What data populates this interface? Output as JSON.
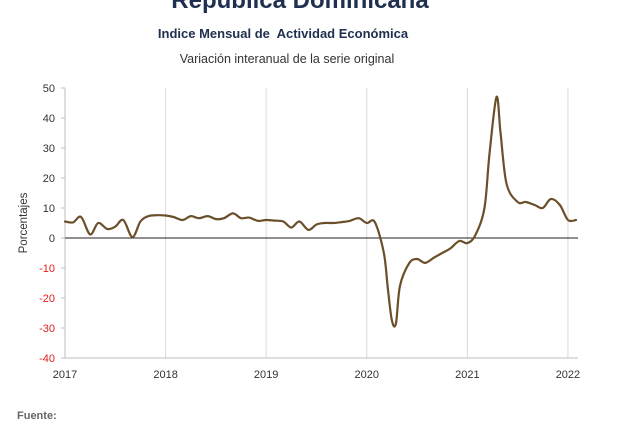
{
  "header": {
    "title": "República Dominicana",
    "subtitle": "Indice Mensual de  Actividad Económica",
    "subtitle2": "Variación interanual de la serie original"
  },
  "footer": {
    "source_label": "Fuente:"
  },
  "colors": {
    "line": "#6b4f2a",
    "grid": "#d9d9d9",
    "negative_tick": "#e02020",
    "positive_tick": "#333333"
  },
  "chart_data": {
    "type": "line",
    "ylabel": "Porcentajes",
    "ylim": [
      -40,
      50
    ],
    "yticks": [
      "50",
      "40",
      "30",
      "20",
      "10",
      "0",
      "-10",
      "-20",
      "-30",
      "-40"
    ],
    "xlim": [
      2017,
      2022.1
    ],
    "xticks": [
      "2017",
      "2018",
      "2019",
      "2020",
      "2021",
      "2022"
    ],
    "grid": "vertical",
    "series": [
      {
        "points": [
          [
            2017.0,
            5.5
          ],
          [
            2017.08,
            5.2
          ],
          [
            2017.16,
            7.0
          ],
          [
            2017.25,
            1.2
          ],
          [
            2017.33,
            5.0
          ],
          [
            2017.42,
            3.0
          ],
          [
            2017.5,
            3.8
          ],
          [
            2017.58,
            6.0
          ],
          [
            2017.67,
            0.3
          ],
          [
            2017.75,
            5.5
          ],
          [
            2017.83,
            7.3
          ],
          [
            2017.92,
            7.6
          ],
          [
            2018.0,
            7.5
          ],
          [
            2018.08,
            7.0
          ],
          [
            2018.17,
            6.0
          ],
          [
            2018.25,
            7.3
          ],
          [
            2018.33,
            6.6
          ],
          [
            2018.42,
            7.3
          ],
          [
            2018.5,
            6.3
          ],
          [
            2018.58,
            6.6
          ],
          [
            2018.67,
            8.2
          ],
          [
            2018.75,
            6.6
          ],
          [
            2018.83,
            6.8
          ],
          [
            2018.92,
            5.7
          ],
          [
            2019.0,
            6.0
          ],
          [
            2019.08,
            5.8
          ],
          [
            2019.17,
            5.5
          ],
          [
            2019.25,
            3.5
          ],
          [
            2019.33,
            5.5
          ],
          [
            2019.42,
            2.7
          ],
          [
            2019.5,
            4.5
          ],
          [
            2019.58,
            5.0
          ],
          [
            2019.67,
            5.0
          ],
          [
            2019.75,
            5.3
          ],
          [
            2019.83,
            5.7
          ],
          [
            2019.92,
            6.6
          ],
          [
            2020.0,
            5.0
          ],
          [
            2020.08,
            5.3
          ],
          [
            2020.17,
            -5.0
          ],
          [
            2020.21,
            -17.0
          ],
          [
            2020.25,
            -27.5
          ],
          [
            2020.29,
            -28.5
          ],
          [
            2020.33,
            -16.0
          ],
          [
            2020.42,
            -8.5
          ],
          [
            2020.5,
            -7.0
          ],
          [
            2020.58,
            -8.3
          ],
          [
            2020.67,
            -6.5
          ],
          [
            2020.75,
            -5.0
          ],
          [
            2020.83,
            -3.5
          ],
          [
            2020.92,
            -1.0
          ],
          [
            2021.0,
            -1.7
          ],
          [
            2021.08,
            1.0
          ],
          [
            2021.17,
            10.0
          ],
          [
            2021.22,
            28.0
          ],
          [
            2021.29,
            47.0
          ],
          [
            2021.33,
            35.0
          ],
          [
            2021.39,
            18.0
          ],
          [
            2021.5,
            12.0
          ],
          [
            2021.58,
            12.0
          ],
          [
            2021.67,
            11.0
          ],
          [
            2021.75,
            10.0
          ],
          [
            2021.83,
            13.0
          ],
          [
            2021.92,
            11.0
          ],
          [
            2022.0,
            6.0
          ],
          [
            2022.08,
            6.0
          ]
        ]
      }
    ]
  }
}
